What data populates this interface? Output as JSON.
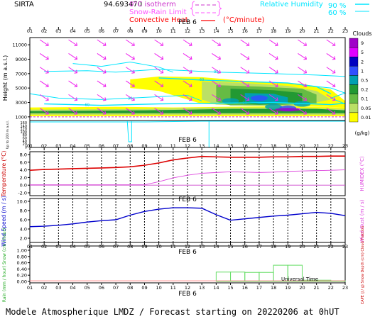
{
  "header": {
    "station": "SIRTA",
    "coords": "94.693470",
    "legend_left": [
      {
        "label": "0°C isotherm",
        "color": "#cc33cc",
        "style": "dashed"
      },
      {
        "label": "Snow-Rain Limit",
        "color": "#ff66ff",
        "style": "dashed"
      },
      {
        "label": "Convective Heat.",
        "color": "#ff0000",
        "style": "solid"
      }
    ],
    "convective_unit": "(°C/minute)",
    "legend_right": {
      "label": "Relative Humidity",
      "levels": [
        "90 %",
        "60 %"
      ],
      "color": "#00e5ff"
    }
  },
  "hours": [
    "01",
    "02",
    "03",
    "04",
    "05",
    "06",
    "07",
    "08",
    "09",
    "10",
    "11",
    "12",
    "13",
    "14",
    "15",
    "16",
    "17",
    "18",
    "19",
    "20",
    "21",
    "22",
    "23"
  ],
  "date_label": "FEB 6",
  "panel1": {
    "ylabel": "Height (m a.s.l.)",
    "ylabel_low": "Up to 200 m a.s.l.",
    "yticks_upper": [
      "11000",
      "9000",
      "7000",
      "5000",
      "3000",
      "1000"
    ],
    "yticks_lower": [
      "160",
      "140",
      "120",
      "100",
      "80",
      "60",
      "40",
      "20",
      "0"
    ],
    "bottom_yticks": [
      "160",
      "140",
      "120",
      "100"
    ],
    "clouds_title": "Clouds",
    "colorbar_labels": [
      "9",
      "5",
      "2",
      "1",
      "0.5",
      "0.2",
      "0.1",
      "0.05",
      "0.01"
    ],
    "colorbar_colors": [
      "#a000c8",
      "#e000ff",
      "#0000c0",
      "#3050ff",
      "#00a0b0",
      "#229933",
      "#66bb44",
      "#bbe066",
      "#ffff00"
    ],
    "colorbar_unit": "(g/kg)",
    "rh_labels": [
      "60",
      "90",
      "60",
      "90",
      "90"
    ]
  },
  "panel2": {
    "ylabel": "Temperature (°C)",
    "ylabel_right": "HUMIDEX (°C)",
    "yticks": [
      "8.0",
      "6.0",
      "4.0",
      "2.0",
      "0.0",
      "-2.0"
    ],
    "date_label": "FEB 6"
  },
  "panel3": {
    "ylabel": "Wind Speed (m / s)",
    "ylabel_right": "Wind Gust (m / s)",
    "yticks": [
      "10.0",
      "8.0",
      "6.0",
      "4.0",
      "2.0"
    ],
    "date_label": "FEB 6"
  },
  "panel4": {
    "ylabel": "Rain (mm / hour) Snow (cm / hour)",
    "ylabel_right": "CAPE (J / g) Snow Depth (cm) Cloud Fraction",
    "yticks": [
      "1.00",
      "0.80",
      "0.60",
      "0.40",
      "0.20",
      "0.00"
    ],
    "xlabel": "Universal Time",
    "date_label": "FEB 6"
  },
  "footer": "Modele Atmospherique LMDZ / Forecast starting on 20220206 at 0hUT",
  "chart_data": [
    {
      "type": "heatmap",
      "title": "",
      "x": [
        "01",
        "02",
        "03",
        "04",
        "05",
        "06",
        "07",
        "08",
        "09",
        "10",
        "11",
        "12",
        "13",
        "14",
        "15",
        "16",
        "17",
        "18",
        "19",
        "20",
        "21",
        "22",
        "23"
      ],
      "y_range_m": [
        0,
        12000
      ],
      "colorbar": {
        "title": "Clouds",
        "unit": "(g/kg)",
        "levels": [
          0.01,
          0.05,
          0.1,
          0.2,
          0.5,
          1,
          2,
          5,
          9
        ]
      },
      "overlays": [
        "wind arrows",
        "relative humidity contours 60% / 90%"
      ],
      "cloud_layers": [
        {
          "hours": [
            "08",
            "21"
          ],
          "height_m": [
            4800,
            6500
          ],
          "level": 0.01
        },
        {
          "hours": [
            "13",
            "21"
          ],
          "height_m": [
            2500,
            5500
          ],
          "level": 0.1
        },
        {
          "hours": [
            "15",
            "20"
          ],
          "height_m": [
            2500,
            4500
          ],
          "level": 0.5
        },
        {
          "hours": [
            "01",
            "23"
          ],
          "height_m": [
            1200,
            2200
          ],
          "level": 0.05
        }
      ]
    },
    {
      "type": "line",
      "title": "",
      "ylabel": "Temperature",
      "ylim": [
        -2.0,
        8.0
      ],
      "x": [
        "01",
        "02",
        "03",
        "04",
        "05",
        "06",
        "07",
        "08",
        "09",
        "10",
        "11",
        "12",
        "13",
        "14",
        "15",
        "16",
        "17",
        "18",
        "19",
        "20",
        "21",
        "22",
        "23"
      ],
      "series": [
        {
          "name": "Temperature",
          "color": "#dd0000",
          "values": [
            3.9,
            4.1,
            4.2,
            4.3,
            4.4,
            4.5,
            4.6,
            4.8,
            5.2,
            5.8,
            6.6,
            7.1,
            7.5,
            7.4,
            7.3,
            7.3,
            7.3,
            7.4,
            7.4,
            7.5,
            7.5,
            7.6,
            7.6
          ]
        },
        {
          "name": "HUMIDEX",
          "color": "#dd44dd",
          "values": [
            0.1,
            0.1,
            0.1,
            0.1,
            0.1,
            0.1,
            0.1,
            0.1,
            0.1,
            0.9,
            1.9,
            2.6,
            3.1,
            3.3,
            3.5,
            3.4,
            3.3,
            3.4,
            3.6,
            3.7,
            3.8,
            3.9,
            4.0
          ]
        },
        {
          "name": "0°C",
          "color": "#cc44cc",
          "values": [
            0.0,
            0.0,
            0.0,
            0.0,
            0.0,
            0.0,
            0.0,
            0.0,
            0.0,
            0.0,
            0.0,
            0.0,
            0.0,
            0.0,
            0.0,
            0.0,
            0.0,
            0.0,
            0.0,
            0.0,
            0.0,
            0.0,
            0.0
          ]
        }
      ]
    },
    {
      "type": "line",
      "title": "",
      "ylabel": "Wind Speed",
      "ylim": [
        2.0,
        10.0
      ],
      "x": [
        "01",
        "02",
        "03",
        "04",
        "05",
        "06",
        "07",
        "08",
        "09",
        "10",
        "11",
        "12",
        "13",
        "14",
        "15",
        "16",
        "17",
        "18",
        "19",
        "20",
        "21",
        "22",
        "23"
      ],
      "series": [
        {
          "name": "Wind Speed",
          "color": "#0000cc",
          "values": [
            4.5,
            4.6,
            4.8,
            5.1,
            5.5,
            5.8,
            6.0,
            7.0,
            7.8,
            8.3,
            8.6,
            8.6,
            8.5,
            7.1,
            5.9,
            6.2,
            6.5,
            6.8,
            7.0,
            7.3,
            7.6,
            7.4,
            6.9
          ]
        }
      ]
    },
    {
      "type": "bar",
      "title": "",
      "ylabel": "Rain",
      "ylim": [
        0.0,
        1.0
      ],
      "x": [
        "01",
        "02",
        "03",
        "04",
        "05",
        "06",
        "07",
        "08",
        "09",
        "10",
        "11",
        "12",
        "13",
        "14",
        "15",
        "16",
        "17",
        "18",
        "19",
        "20",
        "21",
        "22",
        "23"
      ],
      "series": [
        {
          "name": "Rain",
          "color": "#66dd66",
          "values": [
            0,
            0,
            0,
            0,
            0,
            0,
            0,
            0,
            0,
            0,
            0,
            0,
            0,
            0.3,
            0.3,
            0.29,
            0.29,
            0.52,
            0.52,
            0.04,
            0.04,
            0.02,
            0.0
          ]
        },
        {
          "name": "Cloud Fraction",
          "color": "#ff8888",
          "values": [
            0.02,
            0.02,
            0.02,
            0.02,
            0.02,
            0.02,
            0.02,
            0.02,
            0.02,
            0.02,
            0.02,
            0.02,
            0.02,
            0.02,
            0.02,
            0.02,
            0.02,
            0.02,
            0.02,
            0.02,
            0.02,
            0.02,
            0.02
          ]
        }
      ]
    }
  ]
}
